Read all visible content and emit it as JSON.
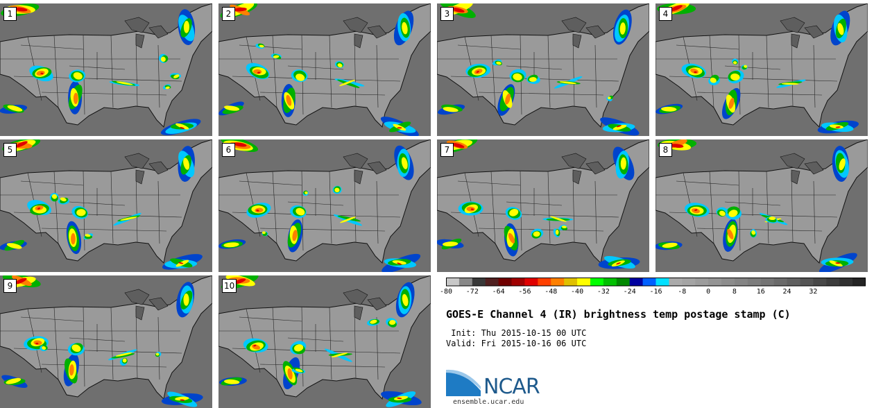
{
  "panels": [
    {
      "label": "1"
    },
    {
      "label": "2"
    },
    {
      "label": "3"
    },
    {
      "label": "4"
    },
    {
      "label": "5"
    },
    {
      "label": "6"
    },
    {
      "label": "7"
    },
    {
      "label": "8"
    },
    {
      "label": "9"
    },
    {
      "label": "10"
    }
  ],
  "colorbar": {
    "ticks": [
      "-80",
      "-72",
      "-64",
      "-56",
      "-48",
      "-40",
      "-32",
      "-24",
      "-16",
      "-8",
      "0",
      "8",
      "16",
      "24",
      "32"
    ],
    "colors": [
      "#c8c8c8",
      "#888888",
      "#383838",
      "#502020",
      "#700000",
      "#a00000",
      "#e00000",
      "#ff4000",
      "#ff8000",
      "#e0c000",
      "#ffff00",
      "#00ff00",
      "#00c000",
      "#008800",
      "#0000a0",
      "#0060ff",
      "#00e0ff",
      "#aaaaaa",
      "#a4a4a4",
      "#9c9c9c",
      "#949494",
      "#8c8c8c",
      "#848484",
      "#7c7c7c",
      "#747474",
      "#6a6a6a",
      "#606060",
      "#545454",
      "#484848",
      "#3c3c3c",
      "#303030",
      "#242424"
    ]
  },
  "title": "GOES-E Channel 4 (IR) brightness temp postage stamp (C)",
  "init_line": " Init: Thu 2015-10-15 00 UTC",
  "valid_line": "Valid: Fri 2015-10-16 06 UTC",
  "logo_text": "NCAR",
  "url": "ensemble.ucar.edu"
}
